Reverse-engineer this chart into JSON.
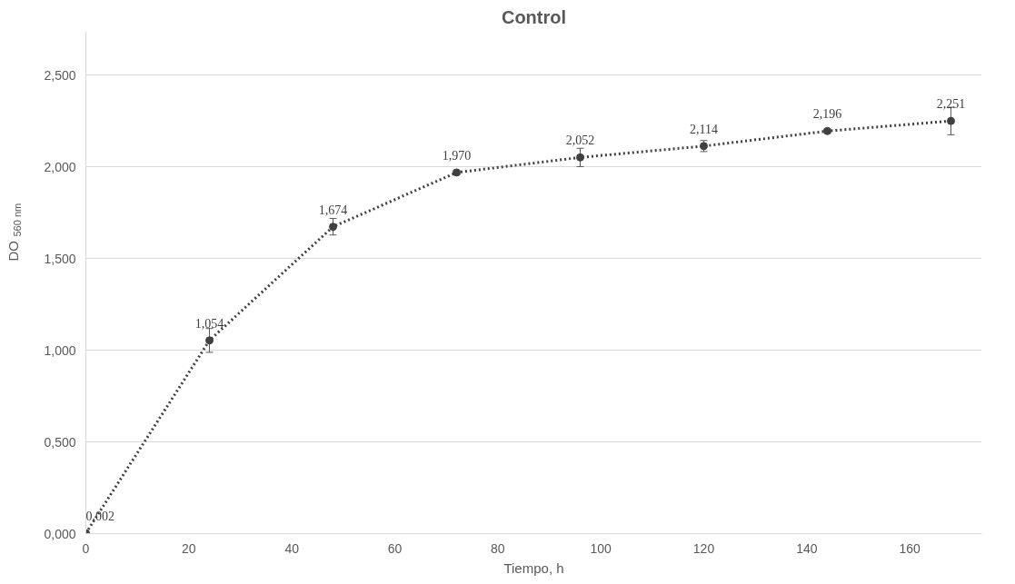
{
  "chart_data": {
    "type": "line",
    "title": "Control",
    "xlabel": "Tiempo, h",
    "ylabel": "DO$_{560 nm}$",
    "x": [
      0,
      24,
      48,
      72,
      96,
      120,
      144,
      168
    ],
    "series": [
      {
        "color": "#404040",
        "values": [
          0.002,
          1.054,
          1.674,
          1.97,
          2.052,
          2.114,
          2.196,
          2.251
        ],
        "errors": [
          null,
          0.065,
          0.045,
          0.01,
          0.05,
          0.03,
          0.01,
          0.075
        ],
        "value_labels": [
          "0,002",
          "1,054",
          "1,674",
          "1,970",
          "2,052",
          "2,114",
          "2,196",
          "2,251"
        ]
      }
    ],
    "xlim": [
      0,
      174
    ],
    "xticks": [
      0,
      20,
      40,
      60,
      80,
      100,
      120,
      140,
      160
    ],
    "ylim": [
      0,
      2.74
    ],
    "yticks": [
      {
        "value": 0,
        "label": "0,000"
      },
      {
        "value": 0.5,
        "label": "0,500"
      },
      {
        "value": 1,
        "label": "1,000"
      },
      {
        "value": 1.5,
        "label": "1,500"
      },
      {
        "value": 2,
        "label": "2,000"
      },
      {
        "value": 2.5,
        "label": "2,500"
      }
    ],
    "grid": "y",
    "legend": false,
    "marker": "circle",
    "line_style": "dotted"
  }
}
